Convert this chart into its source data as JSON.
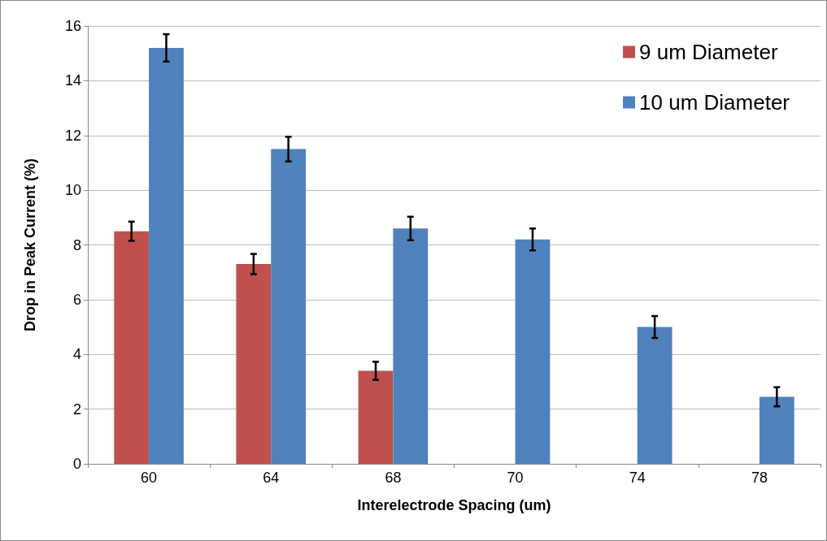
{
  "chart_data": {
    "type": "bar",
    "xlabel": "Interelectrode Spacing (um)",
    "ylabel": "Drop in Peak Current (%)",
    "categories": [
      "60",
      "64",
      "68",
      "70",
      "74",
      "78"
    ],
    "series": [
      {
        "name": "9 um Diameter",
        "color": "#c0504d",
        "values": [
          8.5,
          7.3,
          3.4,
          null,
          null,
          null
        ],
        "errors": [
          0.35,
          0.37,
          0.33,
          null,
          null,
          null
        ]
      },
      {
        "name": "10 um Diameter",
        "color": "#4f81bd",
        "values": [
          15.2,
          11.5,
          8.6,
          8.2,
          5.0,
          2.45
        ],
        "errors": [
          0.5,
          0.45,
          0.43,
          0.4,
          0.4,
          0.35
        ]
      }
    ],
    "ylim": [
      0,
      16
    ],
    "yticks": [
      0,
      2,
      4,
      6,
      8,
      10,
      12,
      14,
      16
    ],
    "grid": "y",
    "legend": "top right"
  }
}
